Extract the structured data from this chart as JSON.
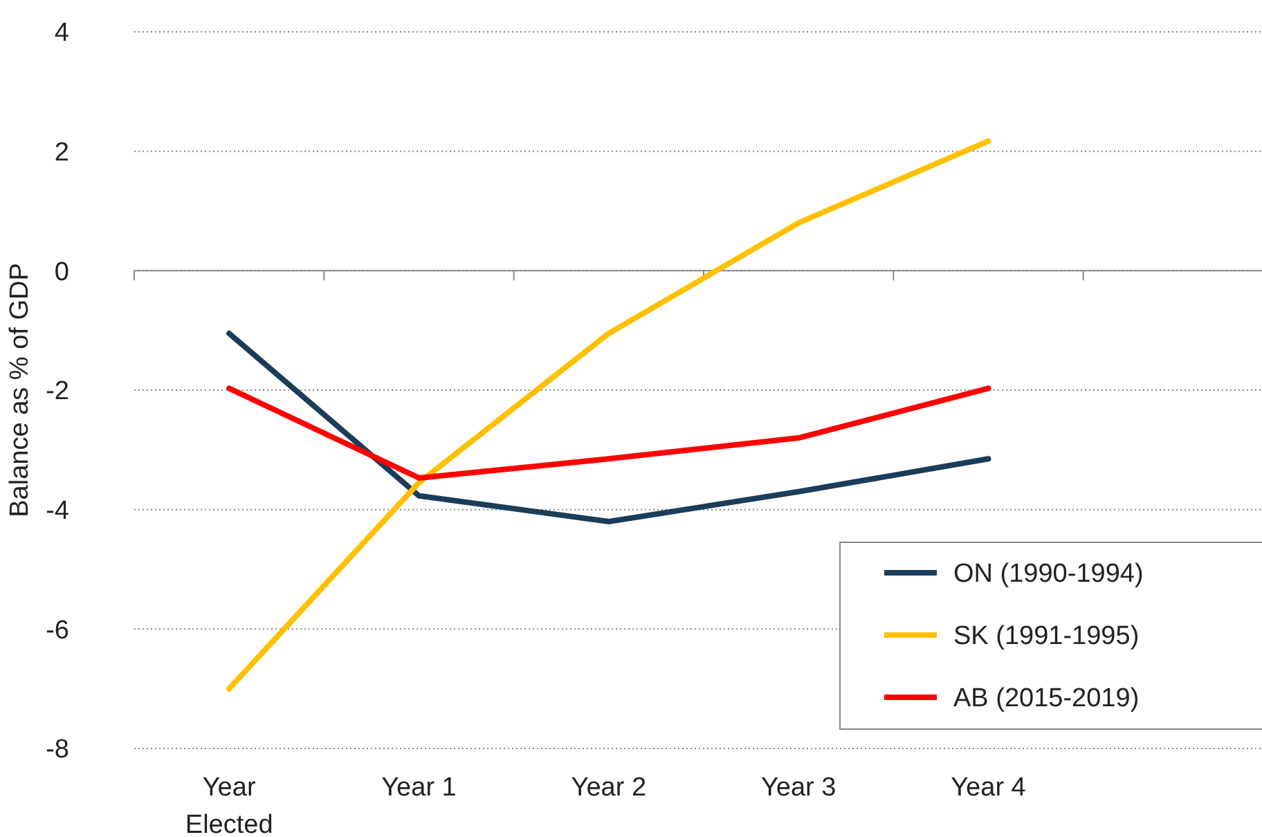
{
  "chart_data": {
    "type": "line",
    "ylabel": "Balance as % of GDP",
    "categories": [
      "Year Elected",
      "Year 1",
      "Year 2",
      "Year 3",
      "Year 4",
      null
    ],
    "ylim": [
      -8,
      4
    ],
    "yticks": [
      -8,
      -6,
      -4,
      -2,
      0,
      2,
      4
    ],
    "grid": "y",
    "legend": "bottom right",
    "marker": "none",
    "line_style": "solid",
    "series": [
      {
        "name": "ON (1990-1994)",
        "color": "#1b3d5a",
        "values": [
          -1.05,
          -3.77,
          -4.2,
          -3.7,
          -3.15,
          null
        ]
      },
      {
        "name": "SK (1991-1995)",
        "color": "#ffc000",
        "values": [
          -7.0,
          -3.55,
          -1.05,
          0.8,
          2.17,
          null
        ]
      },
      {
        "name": "AB (2015-2019)",
        "color": "#ff0000",
        "values": [
          -1.97,
          -3.47,
          -3.15,
          -2.8,
          -1.97,
          null
        ]
      }
    ]
  }
}
